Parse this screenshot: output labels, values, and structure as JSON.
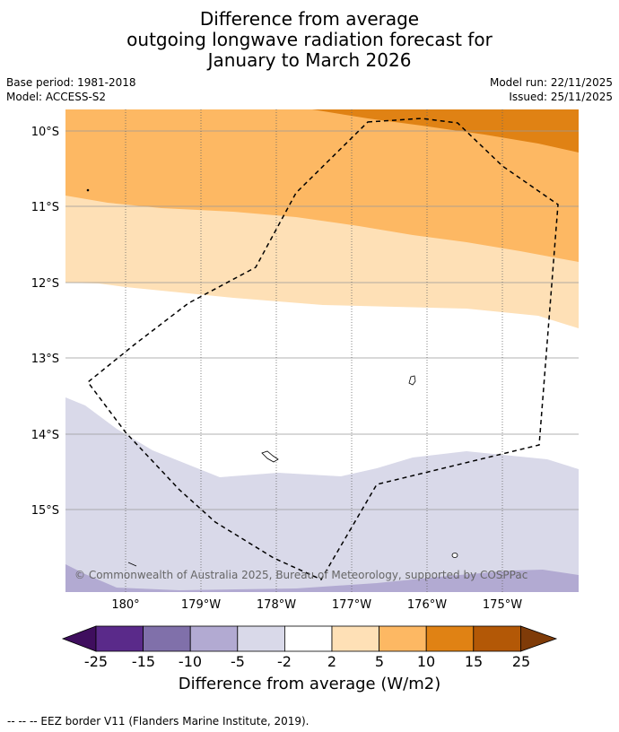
{
  "title": {
    "line1": "Difference from average",
    "line2": "outgoing longwave radiation forecast for",
    "line3": "January to March 2026"
  },
  "meta": {
    "base_period": "Base period: 1981-2018",
    "model": "Model: ACCESS-S2",
    "model_run": "Model run: 22/11/2025",
    "issued": "Issued: 25/11/2025"
  },
  "map": {
    "lat_labels": [
      "10°S",
      "11°S",
      "12°S",
      "13°S",
      "14°S",
      "15°S"
    ],
    "lon_labels": [
      "180°",
      "179°W",
      "178°W",
      "177°W",
      "176°W",
      "175°W"
    ],
    "copyright": "© Commonwealth of Australia 2025, Bureau of Meteorology, supported by COSPPac"
  },
  "colorbar": {
    "labels": [
      "-25",
      "-15",
      "-10",
      "-5",
      "-2",
      "2",
      "5",
      "10",
      "15",
      "25"
    ],
    "colors": [
      "#3f0e5e",
      "#5a2a8a",
      "#8070aa",
      "#b2aad2",
      "#d9d9e9",
      "#ffffff",
      "#fee0b6",
      "#fdb863",
      "#e08214",
      "#b35806",
      "#7f3b08"
    ],
    "title": "Difference from average (W/m2)"
  },
  "legend": {
    "eez": "--  --  -- EEZ border V11 (Flanders Marine Institute, 2019)."
  }
}
